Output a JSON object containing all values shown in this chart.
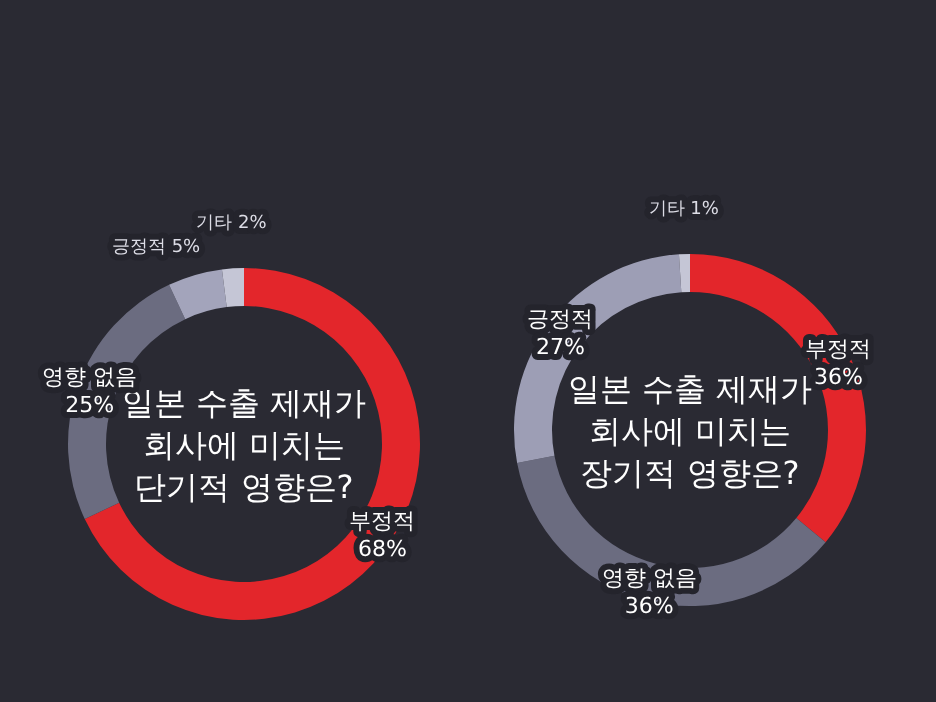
{
  "chart_data": [
    {
      "type": "donut",
      "title": "일본 수출 제재가\n회사에 미치는\n단기적 영향은?",
      "categories": [
        "부정적",
        "영향 없음",
        "긍정적",
        "기타"
      ],
      "values": [
        68,
        25,
        5,
        2
      ],
      "colors": [
        "#e3262b",
        "#6b6c80",
        "#a3a4bb",
        "#c5c6d6"
      ],
      "value_labels": [
        "68%",
        "25%",
        "5%",
        "2%"
      ]
    },
    {
      "type": "donut",
      "title": "일본 수출 제재가\n회사에 미치는\n장기적 영향은?",
      "categories": [
        "부정적",
        "영향 없음",
        "긍정적",
        "기타"
      ],
      "values": [
        36,
        36,
        27,
        1
      ],
      "colors": [
        "#e3262b",
        "#6b6c80",
        "#9d9eb5",
        "#c5c6d6"
      ],
      "value_labels": [
        "36%",
        "36%",
        "27%",
        "1%"
      ]
    }
  ]
}
